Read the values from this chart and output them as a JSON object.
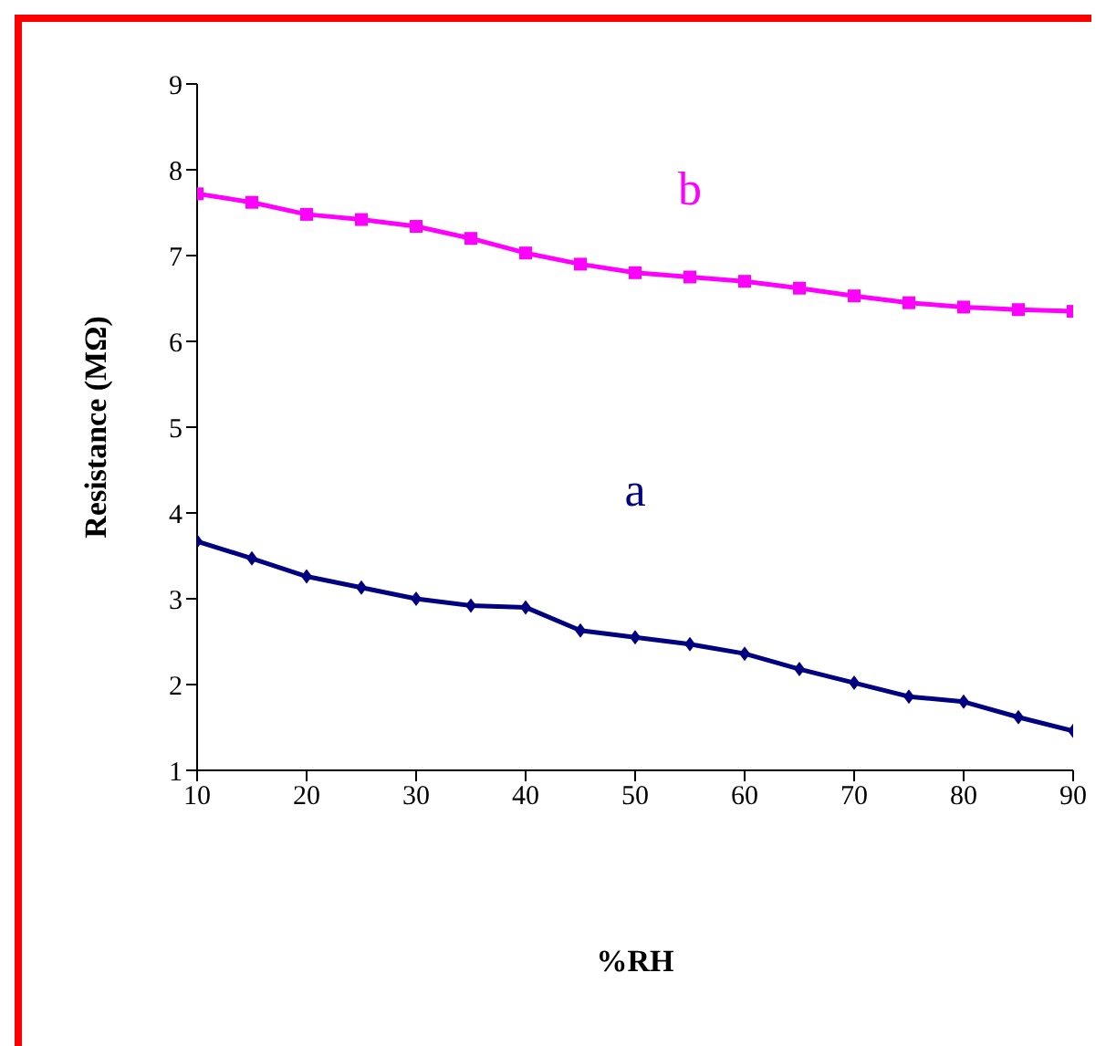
{
  "chart_data": {
    "type": "line",
    "xlabel": "%RH",
    "ylabel": "Resistance (MΩ)",
    "x": [
      10,
      15,
      20,
      25,
      30,
      35,
      40,
      45,
      50,
      55,
      60,
      65,
      70,
      75,
      80,
      85,
      90
    ],
    "xlim": [
      10,
      90
    ],
    "xticks": [
      10,
      20,
      30,
      40,
      50,
      60,
      70,
      80,
      90
    ],
    "ylim": [
      1,
      9
    ],
    "yticks": [
      1,
      2,
      3,
      4,
      5,
      6,
      7,
      8,
      9
    ],
    "grid": false,
    "legend": false,
    "line_style": "solid",
    "series": [
      {
        "name": "b",
        "color": "#ff00ff",
        "marker": "square",
        "values": [
          7.72,
          7.62,
          7.48,
          7.42,
          7.34,
          7.2,
          7.03,
          6.9,
          6.8,
          6.75,
          6.7,
          6.62,
          6.53,
          6.45,
          6.4,
          6.37,
          6.35
        ]
      },
      {
        "name": "a",
        "color": "#000080",
        "marker": "diamond",
        "values": [
          3.67,
          3.47,
          3.26,
          3.13,
          3.0,
          2.92,
          2.9,
          2.63,
          2.55,
          2.47,
          2.36,
          2.18,
          2.02,
          1.86,
          1.8,
          1.62,
          1.46
        ]
      }
    ]
  }
}
